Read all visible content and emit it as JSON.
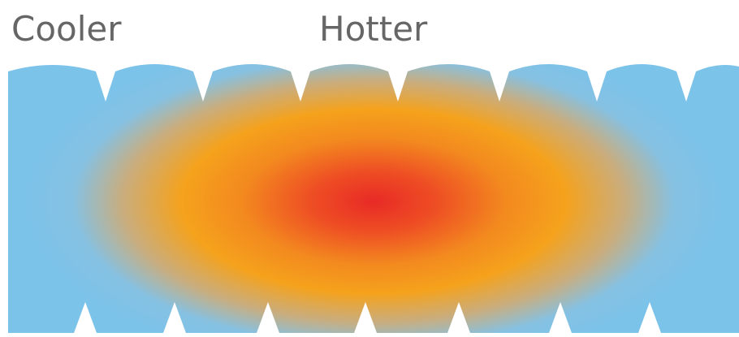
{
  "labels": {
    "cooler": "Cooler",
    "hotter": "Hotter"
  }
}
